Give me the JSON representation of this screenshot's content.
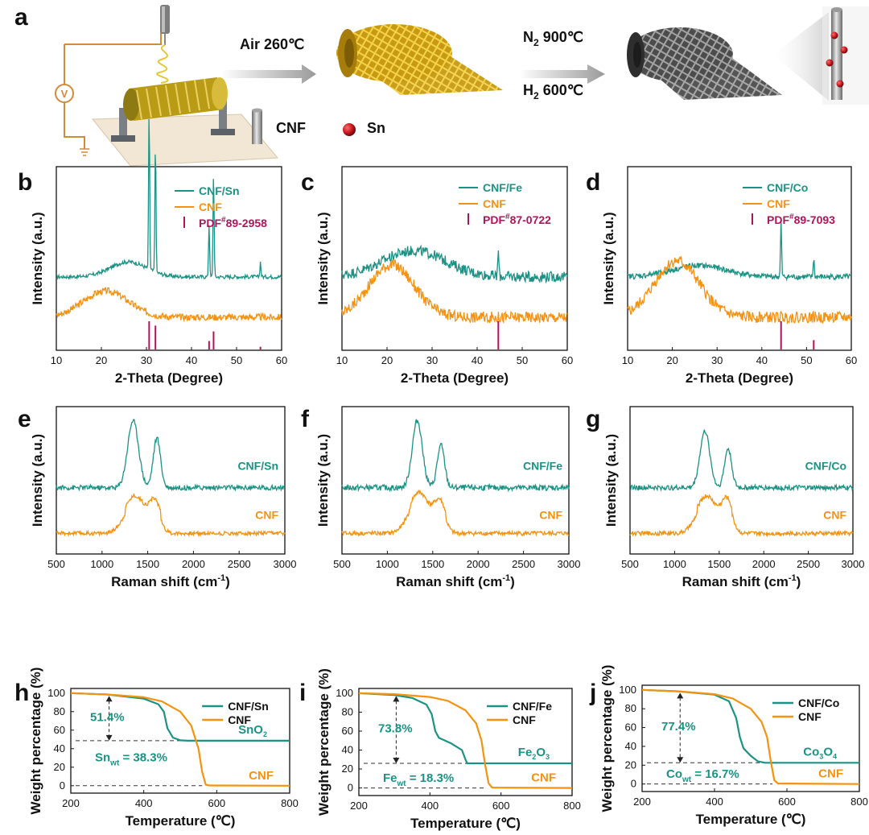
{
  "colors": {
    "teal": "#1a9384",
    "orange": "#f5920f",
    "pdf": "#b0145a",
    "axis": "#111111"
  },
  "schematic": {
    "panel_label": "a",
    "step1": "Air 260℃",
    "step2_n2": "N",
    "step2_n2_sub": "2",
    "step2_n2_rest": " 900℃",
    "step2_h2": "H",
    "step2_h2_sub": "2",
    "step2_h2_rest": " 600℃",
    "legend_cnf": "CNF",
    "legend_sn": "Sn",
    "icons": [
      "voltmeter-icon",
      "nozzle-icon",
      "collector-drum-icon",
      "cnf-mesh-yellow-icon",
      "cnf-mesh-gray-icon",
      "fiber-zoom-icon",
      "cnf-cylinder-icon",
      "sn-sphere-icon"
    ]
  },
  "chart_data": [
    {
      "id": "b",
      "type": "line",
      "panel_label": "b",
      "xlabel": "2-Theta (Degree)",
      "ylabel": "Intensity (a.u.)",
      "xlim": [
        10,
        60
      ],
      "xticks": [
        10,
        20,
        30,
        40,
        50,
        60
      ],
      "legend": [
        {
          "name": "CNF/Sn",
          "kind": "line",
          "color": "teal"
        },
        {
          "name": "CNF",
          "kind": "line",
          "color": "orange"
        },
        {
          "name": "PDF",
          "sup": "#",
          "rest": "89-2958",
          "kind": "bar",
          "color": "pdf"
        }
      ],
      "series": [
        {
          "name": "CNF/Sn",
          "peaks": [
            [
              30.6,
              85
            ],
            [
              32.0,
              70
            ],
            [
              43.9,
              28
            ],
            [
              44.9,
              55
            ],
            [
              55.3,
              8
            ]
          ],
          "base": 1.0,
          "hump": [
            [
              26,
              4,
              8
            ]
          ],
          "noise": 1.0
        },
        {
          "name": "CNF",
          "peaks": [],
          "base": 1.0,
          "hump": [
            [
              21,
              5,
              14
            ]
          ],
          "noise": 1.8
        }
      ],
      "pdf_lines": [
        [
          30.6,
          1.0
        ],
        [
          32.0,
          0.85
        ],
        [
          43.9,
          0.32
        ],
        [
          44.9,
          0.65
        ],
        [
          55.3,
          0.12
        ]
      ]
    },
    {
      "id": "c",
      "type": "line",
      "panel_label": "c",
      "xlabel": "2-Theta (Degree)",
      "ylabel": "Intensity (a.u.)",
      "xlim": [
        10,
        60
      ],
      "xticks": [
        10,
        20,
        30,
        40,
        50,
        60
      ],
      "legend": [
        {
          "name": "CNF/Fe",
          "kind": "line",
          "color": "teal"
        },
        {
          "name": "CNF",
          "kind": "line",
          "color": "orange"
        },
        {
          "name": "PDF",
          "sup": "#",
          "rest": "87-0722",
          "kind": "bar",
          "color": "pdf"
        }
      ],
      "series": [
        {
          "name": "CNF/Fe",
          "peaks": [
            [
              44.7,
              14
            ]
          ],
          "base": 1.0,
          "hump": [
            [
              26,
              7,
              14
            ]
          ],
          "noise": 2.8
        },
        {
          "name": "CNF",
          "peaks": [],
          "base": 1.0,
          "hump": [
            [
              21,
              5,
              28
            ]
          ],
          "noise": 3.0
        }
      ],
      "pdf_lines": [
        [
          44.7,
          1.0
        ]
      ]
    },
    {
      "id": "d",
      "type": "line",
      "panel_label": "d",
      "xlabel": "2-Theta (Degree)",
      "ylabel": "Intensity (a.u.)",
      "xlim": [
        10,
        60
      ],
      "xticks": [
        10,
        20,
        30,
        40,
        50,
        60
      ],
      "legend": [
        {
          "name": "CNF/Co",
          "kind": "line",
          "color": "teal"
        },
        {
          "name": "CNF",
          "kind": "line",
          "color": "orange"
        },
        {
          "name": "PDF",
          "sup": "#",
          "rest": "89-7093",
          "kind": "bar",
          "color": "pdf"
        }
      ],
      "series": [
        {
          "name": "CNF/Co",
          "peaks": [
            [
              44.3,
              30
            ],
            [
              51.6,
              10
            ]
          ],
          "base": 1.0,
          "hump": [
            [
              26,
              6,
              6
            ]
          ],
          "noise": 1.5
        },
        {
          "name": "CNF",
          "peaks": [],
          "base": 1.0,
          "hump": [
            [
              21,
              5,
              30
            ]
          ],
          "noise": 3.0
        }
      ],
      "pdf_lines": [
        [
          44.3,
          1.0
        ],
        [
          51.6,
          0.35
        ]
      ]
    },
    {
      "id": "e",
      "type": "line",
      "panel_label": "e",
      "xlabel": "Raman shift (cm",
      "xlabel_sup": "-1",
      "xlabel_end": ")",
      "ylabel": "Intensity (a.u.)",
      "xlim": [
        500,
        3000
      ],
      "xticks": [
        500,
        1000,
        1500,
        2000,
        2500,
        3000
      ],
      "series": [
        {
          "name": "CNF/Sn",
          "label": "CNF/Sn",
          "peaks": [
            [
              1340,
              60,
              95
            ],
            [
              1600,
              40,
              70
            ]
          ],
          "noise": 3.5
        },
        {
          "name": "CNF",
          "label": "CNF",
          "peaks": [
            [
              1360,
              110,
              45
            ],
            [
              1580,
              60,
              35
            ]
          ],
          "noise": 2.8
        }
      ]
    },
    {
      "id": "f",
      "type": "line",
      "panel_label": "f",
      "xlabel": "Raman shift (cm",
      "xlabel_sup": "-1",
      "xlabel_end": ")",
      "ylabel": "Intensity (a.u.)",
      "xlim": [
        500,
        3000
      ],
      "xticks": [
        500,
        1000,
        1500,
        2000,
        2500,
        3000
      ],
      "series": [
        {
          "name": "CNF/Fe",
          "label": "CNF/Fe",
          "peaks": [
            [
              1330,
              55,
              95
            ],
            [
              1590,
              40,
              60
            ]
          ],
          "noise": 4.0
        },
        {
          "name": "CNF",
          "label": "CNF",
          "peaks": [
            [
              1350,
              110,
              50
            ],
            [
              1580,
              60,
              35
            ]
          ],
          "noise": 3.0
        }
      ]
    },
    {
      "id": "g",
      "type": "line",
      "panel_label": "g",
      "xlabel": "Raman shift (cm",
      "xlabel_sup": "-1",
      "xlabel_end": ")",
      "ylabel": "Intensity (a.u.)",
      "xlim": [
        500,
        3000
      ],
      "xticks": [
        500,
        1000,
        1500,
        2000,
        2500,
        3000
      ],
      "series": [
        {
          "name": "CNF/Co",
          "label": "CNF/Co",
          "peaks": [
            [
              1340,
              55,
              80
            ],
            [
              1600,
              40,
              55
            ]
          ],
          "noise": 3.5
        },
        {
          "name": "CNF",
          "label": "CNF",
          "peaks": [
            [
              1360,
              110,
              45
            ],
            [
              1590,
              60,
              38
            ]
          ],
          "noise": 3.0
        }
      ]
    },
    {
      "id": "h",
      "type": "line",
      "panel_label": "h",
      "xlabel": "Temperature (℃)",
      "ylabel": "Weight percentage (%)",
      "xlim": [
        200,
        800
      ],
      "ylim": [
        -8,
        105
      ],
      "xticks": [
        200,
        400,
        600,
        800
      ],
      "yticks": [
        0,
        20,
        40,
        60,
        80,
        100
      ],
      "legend": [
        {
          "name": "CNF/Sn",
          "kind": "line",
          "color": "teal"
        },
        {
          "name": "CNF",
          "kind": "line",
          "color": "orange"
        }
      ],
      "series": [
        {
          "name": "CNF/Sn",
          "color": "teal",
          "x": [
            200,
            300,
            400,
            440,
            455,
            465,
            480,
            500,
            520,
            540,
            600,
            800
          ],
          "y": [
            100,
            98.5,
            94,
            88,
            80,
            62,
            52,
            49,
            48.6,
            48.6,
            48.6,
            48.6
          ]
        },
        {
          "name": "CNF",
          "color": "orange",
          "x": [
            200,
            300,
            400,
            450,
            500,
            530,
            550,
            560,
            570,
            580,
            600,
            800
          ],
          "y": [
            100,
            98.5,
            95.5,
            91,
            80,
            65,
            40,
            15,
            1,
            0.3,
            0.3,
            0
          ]
        }
      ],
      "residue_label": "SnO",
      "residue_sub": "2",
      "cnf_label": "CNF",
      "delta_label": "51.4%",
      "wt_label": "Sn",
      "wt_sub": "wt",
      "wt_value": "= 38.3%",
      "residue_y": 48.6,
      "arrow_x": 305
    },
    {
      "id": "i",
      "type": "line",
      "panel_label": "i",
      "xlabel": "Temperature (℃)",
      "ylabel": "Weight percentage (%)",
      "xlim": [
        200,
        800
      ],
      "ylim": [
        -8,
        105
      ],
      "xticks": [
        200,
        400,
        600,
        800
      ],
      "yticks": [
        0,
        20,
        40,
        60,
        80,
        100
      ],
      "legend": [
        {
          "name": "CNF/Fe",
          "kind": "line",
          "color": "teal"
        },
        {
          "name": "CNF",
          "kind": "line",
          "color": "orange"
        }
      ],
      "series": [
        {
          "name": "CNF/Fe",
          "color": "teal",
          "x": [
            200,
            300,
            350,
            390,
            405,
            415,
            425,
            460,
            490,
            500,
            505,
            800
          ],
          "y": [
            100,
            98,
            95,
            88,
            78,
            60,
            53,
            47,
            40,
            30,
            26,
            26
          ]
        },
        {
          "name": "CNF",
          "color": "orange",
          "x": [
            200,
            300,
            400,
            450,
            500,
            530,
            545,
            555,
            565,
            575,
            600,
            800
          ],
          "y": [
            100,
            99,
            96,
            92,
            82,
            68,
            50,
            25,
            5,
            0.3,
            0.3,
            0
          ]
        }
      ],
      "residue_label": "Fe",
      "residue_sub": "2",
      "residue_label2": "O",
      "residue_sub2": "3",
      "cnf_label": "CNF",
      "delta_label": "73.8%",
      "wt_label": "Fe",
      "wt_sub": "wt",
      "wt_value": "= 18.3%",
      "residue_y": 26,
      "arrow_x": 305
    },
    {
      "id": "j",
      "type": "line",
      "panel_label": "j",
      "xlabel": "Temperature (℃)",
      "ylabel": "Weight percentage (%)",
      "xlim": [
        200,
        800
      ],
      "ylim": [
        -8,
        105
      ],
      "xticks": [
        200,
        400,
        600,
        800
      ],
      "yticks": [
        0,
        20,
        40,
        60,
        80,
        100
      ],
      "legend": [
        {
          "name": "CNF/Co",
          "kind": "line",
          "color": "teal"
        },
        {
          "name": "CNF",
          "kind": "line",
          "color": "orange"
        }
      ],
      "series": [
        {
          "name": "CNF/Co",
          "color": "teal",
          "x": [
            200,
            300,
            400,
            440,
            460,
            470,
            480,
            500,
            520,
            540,
            600,
            800
          ],
          "y": [
            100,
            98.5,
            95,
            88,
            70,
            50,
            38,
            30,
            24,
            22.6,
            22.6,
            22.6
          ]
        },
        {
          "name": "CNF",
          "color": "orange",
          "x": [
            200,
            300,
            400,
            450,
            500,
            530,
            545,
            555,
            565,
            575,
            600,
            800
          ],
          "y": [
            100,
            98.5,
            95.5,
            91,
            80,
            66,
            50,
            25,
            4,
            0.5,
            0.5,
            0
          ]
        }
      ],
      "residue_label": "Co",
      "residue_sub": "3",
      "residue_label2": "O",
      "residue_sub2": "4",
      "cnf_label": "CNF",
      "delta_label": "77.4%",
      "wt_label": "Co",
      "wt_sub": "wt",
      "wt_value": "= 16.7%",
      "residue_y": 22.6,
      "arrow_x": 305
    }
  ]
}
